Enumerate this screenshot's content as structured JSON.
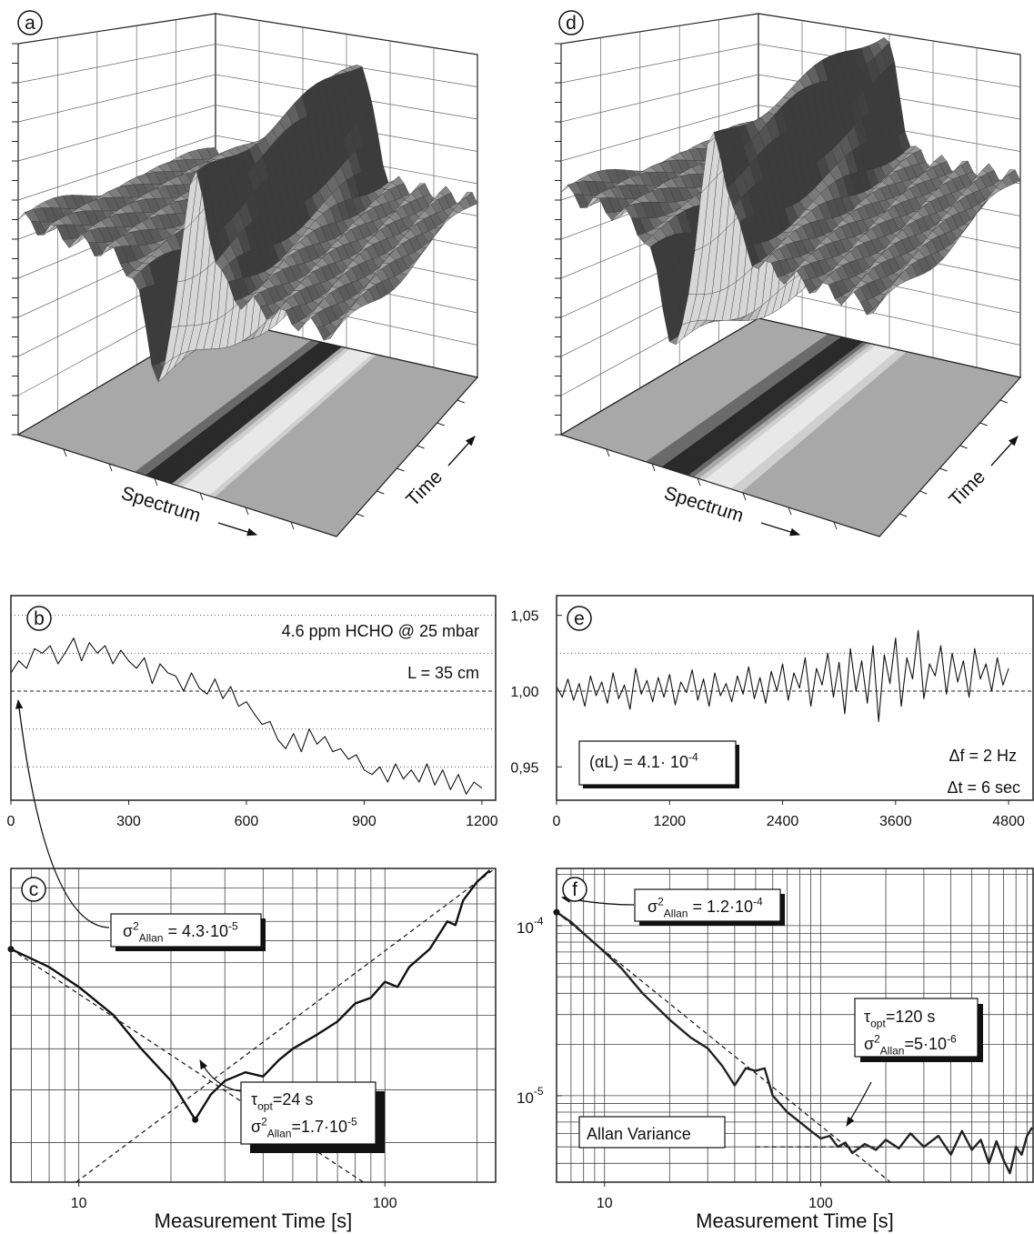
{
  "chart_data": [
    {
      "type": "surface",
      "label": "a",
      "x_label": "Spectrum",
      "y_label": "Time"
    },
    {
      "type": "line",
      "label": "b",
      "color": "#111",
      "x": [
        0,
        20,
        40,
        60,
        80,
        100,
        120,
        140,
        160,
        180,
        200,
        220,
        240,
        260,
        280,
        300,
        320,
        340,
        360,
        380,
        400,
        420,
        440,
        460,
        480,
        500,
        520,
        540,
        560,
        580,
        600,
        620,
        640,
        660,
        680,
        700,
        720,
        740,
        760,
        780,
        800,
        820,
        840,
        860,
        880,
        900,
        920,
        940,
        960,
        980,
        1000,
        1020,
        1040,
        1060,
        1080,
        1100,
        1120,
        1140,
        1160,
        1180,
        1200
      ],
      "values": [
        1.012,
        1.02,
        1.015,
        1.028,
        1.025,
        1.03,
        1.018,
        1.026,
        1.035,
        1.02,
        1.032,
        1.025,
        1.03,
        1.018,
        1.027,
        1.02,
        1.015,
        1.022,
        1.005,
        1.018,
        1.012,
        1.01,
        1.0,
        1.012,
        1.002,
        0.998,
        1.008,
        0.995,
        1.003,
        0.99,
        0.993,
        0.985,
        0.978,
        0.98,
        0.968,
        0.962,
        0.972,
        0.96,
        0.975,
        0.965,
        0.97,
        0.96,
        0.962,
        0.955,
        0.958,
        0.948,
        0.945,
        0.95,
        0.94,
        0.952,
        0.942,
        0.948,
        0.94,
        0.952,
        0.938,
        0.948,
        0.935,
        0.945,
        0.932,
        0.94,
        0.936
      ],
      "xlim": [
        0,
        1235
      ],
      "ylim": [
        0.928,
        1.063
      ],
      "xticks": [
        0,
        300,
        600,
        900,
        1200
      ],
      "gridlines": [
        1.05,
        1.025,
        0.975,
        0.95
      ],
      "reference_y": 1.0,
      "annotations": [
        {
          "lines": [
            [
              {
                "text": "4.6 ppm HCHO @ 25 mbar"
              }
            ]
          ]
        },
        {
          "lines": [
            [
              {
                "text": "L = 35 cm"
              }
            ]
          ]
        }
      ]
    },
    {
      "type": "line",
      "label": "c",
      "color": "#111",
      "xscale": "log",
      "yscale": "log",
      "x_label": "Measurement Time [s]",
      "x": [
        6,
        8,
        10,
        13,
        16,
        20,
        24,
        27,
        30,
        35,
        40,
        45,
        50,
        60,
        70,
        80,
        90,
        100,
        110,
        120,
        140,
        160,
        170,
        180,
        200,
        220
      ],
      "values": [
        4.3e-05,
        3.9e-05,
        3.5e-05,
        3e-05,
        2.5e-05,
        2.1e-05,
        1.7e-05,
        1.95e-05,
        2.1e-05,
        2.2e-05,
        2.15e-05,
        2.35e-05,
        2.5e-05,
        2.7e-05,
        2.9e-05,
        3.2e-05,
        3.3e-05,
        3.6e-05,
        3.5e-05,
        3.9e-05,
        4.3e-05,
        5e-05,
        4.9e-05,
        5.6e-05,
        6.2e-05,
        6.6e-05
      ],
      "xlim": [
        6,
        230
      ],
      "ylim": [
        1.21e-05,
        6.67e-05
      ],
      "xticks": [
        10,
        100
      ],
      "xgrid": [
        7,
        8,
        9,
        10,
        20,
        30,
        40,
        50,
        60,
        70,
        80,
        90,
        100,
        200
      ],
      "ygrid": [
        1.5e-05,
        2e-05,
        2.5e-05,
        3e-05,
        3.5e-05,
        4e-05,
        4.5e-05,
        5e-05,
        5.5e-05,
        6e-05
      ],
      "reference_lines": [
        {
          "x": [
            6,
            85
          ],
          "y": [
            4.3e-05,
            1.21e-05
          ]
        },
        {
          "x": [
            9.8,
            229
          ],
          "y": [
            1.21e-05,
            6.67e-05
          ]
        }
      ],
      "annotations": [
        {
          "lines": [
            [
              {
                "text": "σ"
              },
              {
                "sup": "2"
              },
              {
                "sub": "Allan"
              },
              {
                "text": " = 4.3·10"
              },
              {
                "sup": "-5"
              }
            ]
          ]
        },
        {
          "lines": [
            [
              {
                "text": "τ"
              },
              {
                "sub": "opt"
              },
              {
                "text": "=24 s"
              }
            ],
            [
              {
                "text": "σ"
              },
              {
                "sup": "2"
              },
              {
                "sub": "Allan"
              },
              {
                "text": "=1.7·10"
              },
              {
                "sup": "-5"
              }
            ]
          ]
        }
      ]
    },
    {
      "type": "surface",
      "label": "d",
      "x_label": "Spectrum",
      "y_label": "Time"
    },
    {
      "type": "line",
      "label": "e",
      "color": "#111",
      "x": [
        0,
        60,
        120,
        180,
        240,
        300,
        360,
        420,
        480,
        540,
        600,
        660,
        720,
        780,
        840,
        900,
        960,
        1020,
        1080,
        1140,
        1200,
        1260,
        1320,
        1380,
        1440,
        1500,
        1560,
        1620,
        1680,
        1740,
        1800,
        1860,
        1920,
        1980,
        2040,
        2100,
        2160,
        2220,
        2280,
        2340,
        2400,
        2460,
        2520,
        2580,
        2640,
        2700,
        2760,
        2820,
        2880,
        2940,
        3000,
        3060,
        3120,
        3180,
        3240,
        3300,
        3360,
        3420,
        3480,
        3540,
        3600,
        3660,
        3720,
        3780,
        3840,
        3900,
        3960,
        4020,
        4080,
        4140,
        4200,
        4260,
        4320,
        4380,
        4440,
        4500,
        4560,
        4620,
        4680,
        4740,
        4800
      ],
      "values": [
        1.003,
        0.996,
        1.008,
        0.994,
        1.005,
        0.99,
        1.01,
        0.997,
        1.006,
        0.992,
        1.012,
        0.995,
        1.004,
        0.988,
        1.015,
        0.998,
        1.007,
        0.993,
        1.009,
        0.996,
        1.011,
        0.991,
        1.006,
        0.999,
        1.014,
        0.994,
        1.008,
        0.99,
        1.012,
        0.997,
        1.005,
        0.993,
        1.01,
        0.998,
        1.016,
        0.995,
        1.009,
        0.992,
        1.013,
        1.0,
        1.018,
        0.994,
        1.012,
        1.002,
        1.022,
        0.99,
        1.015,
        1.004,
        1.025,
        0.996,
        1.019,
        0.985,
        1.028,
        1.0,
        1.02,
        0.992,
        1.03,
        0.98,
        1.024,
        1.005,
        1.035,
        0.99,
        1.022,
        1.008,
        1.04,
        0.995,
        1.018,
        1.01,
        1.03,
        0.998,
        1.025,
        1.006,
        1.02,
        0.996,
        1.028,
        1.008,
        1.018,
        1.0,
        1.022,
        1.004,
        1.015
      ],
      "xlim": [
        0,
        5060
      ],
      "ylim": [
        0.928,
        1.063
      ],
      "xticks": [
        0,
        1200,
        2400,
        3600,
        4800
      ],
      "yticks": [
        {
          "value": 1.05,
          "label": "1,05"
        },
        {
          "value": 1.0,
          "label": "1,00"
        },
        {
          "value": 0.95,
          "label": "0,95"
        }
      ],
      "gridlines": [
        1.025
      ],
      "reference_y": 1.0,
      "annotations": [
        {
          "lines": [
            [
              {
                "text": "(αL) = 4.1· 10"
              },
              {
                "sup": "-4"
              }
            ]
          ]
        },
        {
          "lines": [
            [
              {
                "text": "Δf = 2 Hz"
              }
            ]
          ]
        },
        {
          "lines": [
            [
              {
                "text": "Δt = 6 sec"
              }
            ]
          ]
        }
      ]
    },
    {
      "type": "line",
      "label": "f",
      "color": "#222",
      "xscale": "log",
      "yscale": "log",
      "x_label": "Measurement Time [s]",
      "x": [
        6,
        7,
        8,
        10,
        12,
        15,
        20,
        25,
        30,
        35,
        40,
        45,
        50,
        55,
        60,
        70,
        80,
        90,
        100,
        110,
        120,
        130,
        140,
        160,
        180,
        200,
        230,
        260,
        300,
        350,
        400,
        450,
        500,
        550,
        600,
        650,
        700,
        750,
        800,
        850,
        900,
        950
      ],
      "values": [
        0.00012,
        0.000105,
        9e-05,
        7e-05,
        5.6e-05,
        4e-05,
        2.8e-05,
        2.2e-05,
        1.9e-05,
        1.5e-05,
        1.15e-05,
        1.45e-05,
        1.4e-05,
        1.45e-05,
        1e-05,
        8e-06,
        7e-06,
        6.2e-06,
        5.6e-06,
        5.8e-06,
        5e-06,
        5.3e-06,
        4.6e-06,
        5.2e-06,
        4.8e-06,
        5.5e-06,
        4.9e-06,
        6e-06,
        5e-06,
        5.8e-06,
        4.5e-06,
        6.2e-06,
        4.8e-06,
        5.5e-06,
        4e-06,
        5.4e-06,
        4.2e-06,
        3.5e-06,
        5e-06,
        4.5e-06,
        5.8e-06,
        6.5e-06
      ],
      "xlim": [
        6,
        960
      ],
      "ylim": [
        3.1e-06,
        0.000217
      ],
      "xticks": [
        10,
        100
      ],
      "yticks": [
        {
          "value": 0.0001,
          "label": "10",
          "sup": "-4"
        },
        {
          "value": 1e-05,
          "label": "10",
          "sup": "-5"
        }
      ],
      "xgrid": [
        7,
        8,
        9,
        10,
        20,
        30,
        40,
        50,
        60,
        70,
        80,
        90,
        100,
        200,
        300,
        400,
        500,
        600,
        700,
        800,
        900
      ],
      "ygrid": [
        4e-06,
        5e-06,
        6e-06,
        7e-06,
        8e-06,
        9e-06,
        1e-05,
        2e-05,
        3e-05,
        4e-05,
        5e-05,
        6e-05,
        7e-05,
        8e-05,
        9e-05,
        0.0001,
        0.0002
      ],
      "reference_lines": [
        {
          "x": [
            6,
            210
          ],
          "y": [
            0.00012,
            3.1e-06
          ]
        },
        {
          "x": [
            50,
            200
          ],
          "y": [
            5e-06,
            5e-06
          ]
        }
      ],
      "annotations": [
        {
          "lines": [
            [
              {
                "text": "σ"
              },
              {
                "sup": "2"
              },
              {
                "sub": "Allan"
              },
              {
                "text": " = 1.2·10"
              },
              {
                "sup": "-4"
              }
            ]
          ]
        },
        {
          "lines": [
            [
              {
                "text": "τ"
              },
              {
                "sub": "opt"
              },
              {
                "text": "=120 s"
              }
            ],
            [
              {
                "text": "σ"
              },
              {
                "sup": "2"
              },
              {
                "sub": "Allan"
              },
              {
                "text": "=5·10"
              },
              {
                "sup": "-6"
              }
            ]
          ]
        },
        {
          "lines": [
            [
              {
                "text": "Allan Variance"
              }
            ]
          ]
        }
      ]
    }
  ]
}
